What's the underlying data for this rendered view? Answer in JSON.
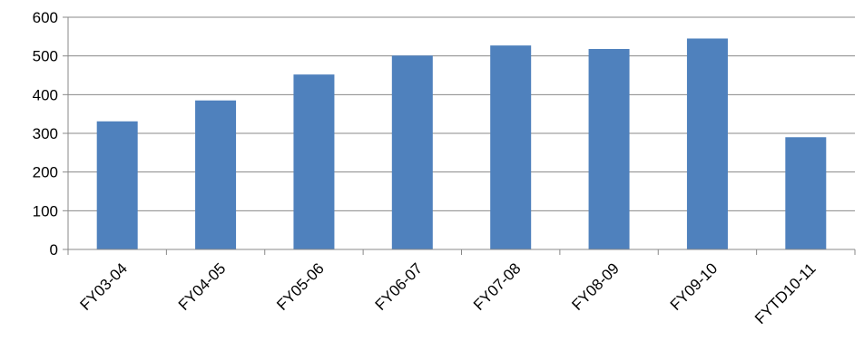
{
  "chart_data": {
    "type": "bar",
    "categories": [
      "FY03-04",
      "FY04-05",
      "FY05-06",
      "FY06-07",
      "FY07-08",
      "FY08-09",
      "FY09-10",
      "FYTD10-11"
    ],
    "values": [
      331,
      385,
      452,
      501,
      527,
      518,
      545,
      290
    ],
    "title": "",
    "xlabel": "",
    "ylabel": "",
    "ylim": [
      0,
      600
    ],
    "yticks": [
      0,
      100,
      200,
      300,
      400,
      500,
      600
    ],
    "grid": true,
    "legend": "none",
    "bar_color": "#4F81BD"
  }
}
